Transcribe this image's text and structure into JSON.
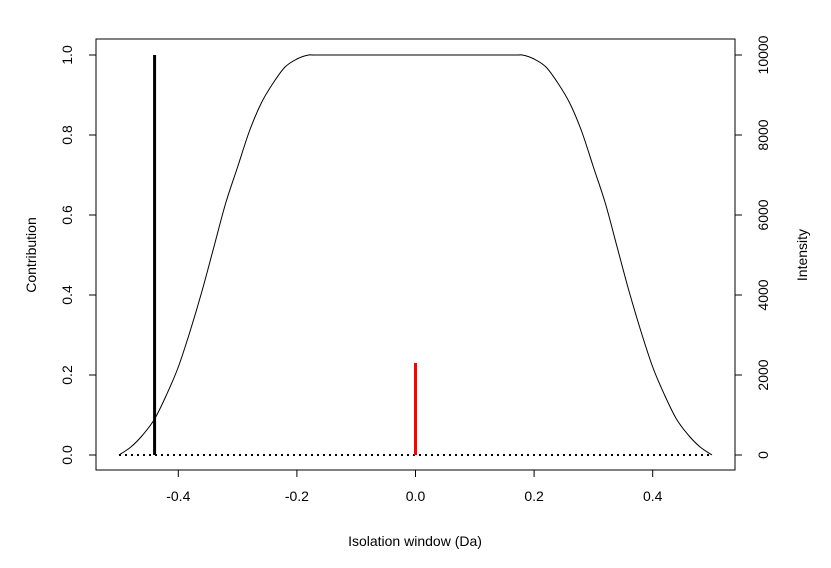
{
  "chart_data": {
    "type": "line",
    "title": "",
    "xlabel": "Isolation window (Da)",
    "ylabel": "Contribution",
    "y2label": "Intensity",
    "xlim": [
      -0.5,
      0.5
    ],
    "ylim": [
      0,
      1
    ],
    "y2lim": [
      0,
      10000
    ],
    "x_ticks": [
      -0.4,
      -0.2,
      0.0,
      0.2,
      0.4
    ],
    "x_tick_labels": [
      "-0.4",
      "-0.2",
      "0.0",
      "0.2",
      "0.4"
    ],
    "y_ticks": [
      0.0,
      0.2,
      0.4,
      0.6,
      0.8,
      1.0
    ],
    "y_tick_labels": [
      "0.0",
      "0.2",
      "0.4",
      "0.6",
      "0.8",
      "1.0"
    ],
    "y2_ticks": [
      0,
      2000,
      4000,
      6000,
      8000,
      10000
    ],
    "y2_tick_labels": [
      "0",
      "2000",
      "4000",
      "6000",
      "8000",
      "10000"
    ],
    "grid": false,
    "legend": "none",
    "contribution_curve": {
      "axis": "left",
      "color": "#000000",
      "x": [
        -0.5,
        -0.48,
        -0.46,
        -0.44,
        -0.42,
        -0.4,
        -0.38,
        -0.36,
        -0.34,
        -0.32,
        -0.3,
        -0.28,
        -0.26,
        -0.24,
        -0.22,
        -0.2,
        -0.18,
        -0.16,
        0.0,
        0.16,
        0.18,
        0.2,
        0.22,
        0.24,
        0.26,
        0.28,
        0.3,
        0.32,
        0.34,
        0.36,
        0.38,
        0.4,
        0.42,
        0.44,
        0.46,
        0.48,
        0.5
      ],
      "y": [
        0.0,
        0.02,
        0.05,
        0.09,
        0.15,
        0.22,
        0.31,
        0.41,
        0.52,
        0.63,
        0.72,
        0.81,
        0.88,
        0.93,
        0.97,
        0.99,
        1.0,
        1.0,
        1.0,
        1.0,
        1.0,
        0.99,
        0.97,
        0.93,
        0.88,
        0.81,
        0.72,
        0.63,
        0.52,
        0.41,
        0.31,
        0.22,
        0.15,
        0.09,
        0.05,
        0.02,
        0.0
      ]
    },
    "baseline": {
      "axis": "left",
      "style": "dotted",
      "color": "#000000",
      "x": [
        -0.5,
        0.5
      ],
      "y": [
        0,
        0
      ]
    },
    "peaks": {
      "axis": "right",
      "x": [
        -0.44,
        0.0
      ],
      "intensity": [
        10000,
        2300
      ],
      "colors": [
        "#000000",
        "#ff0000"
      ]
    }
  }
}
